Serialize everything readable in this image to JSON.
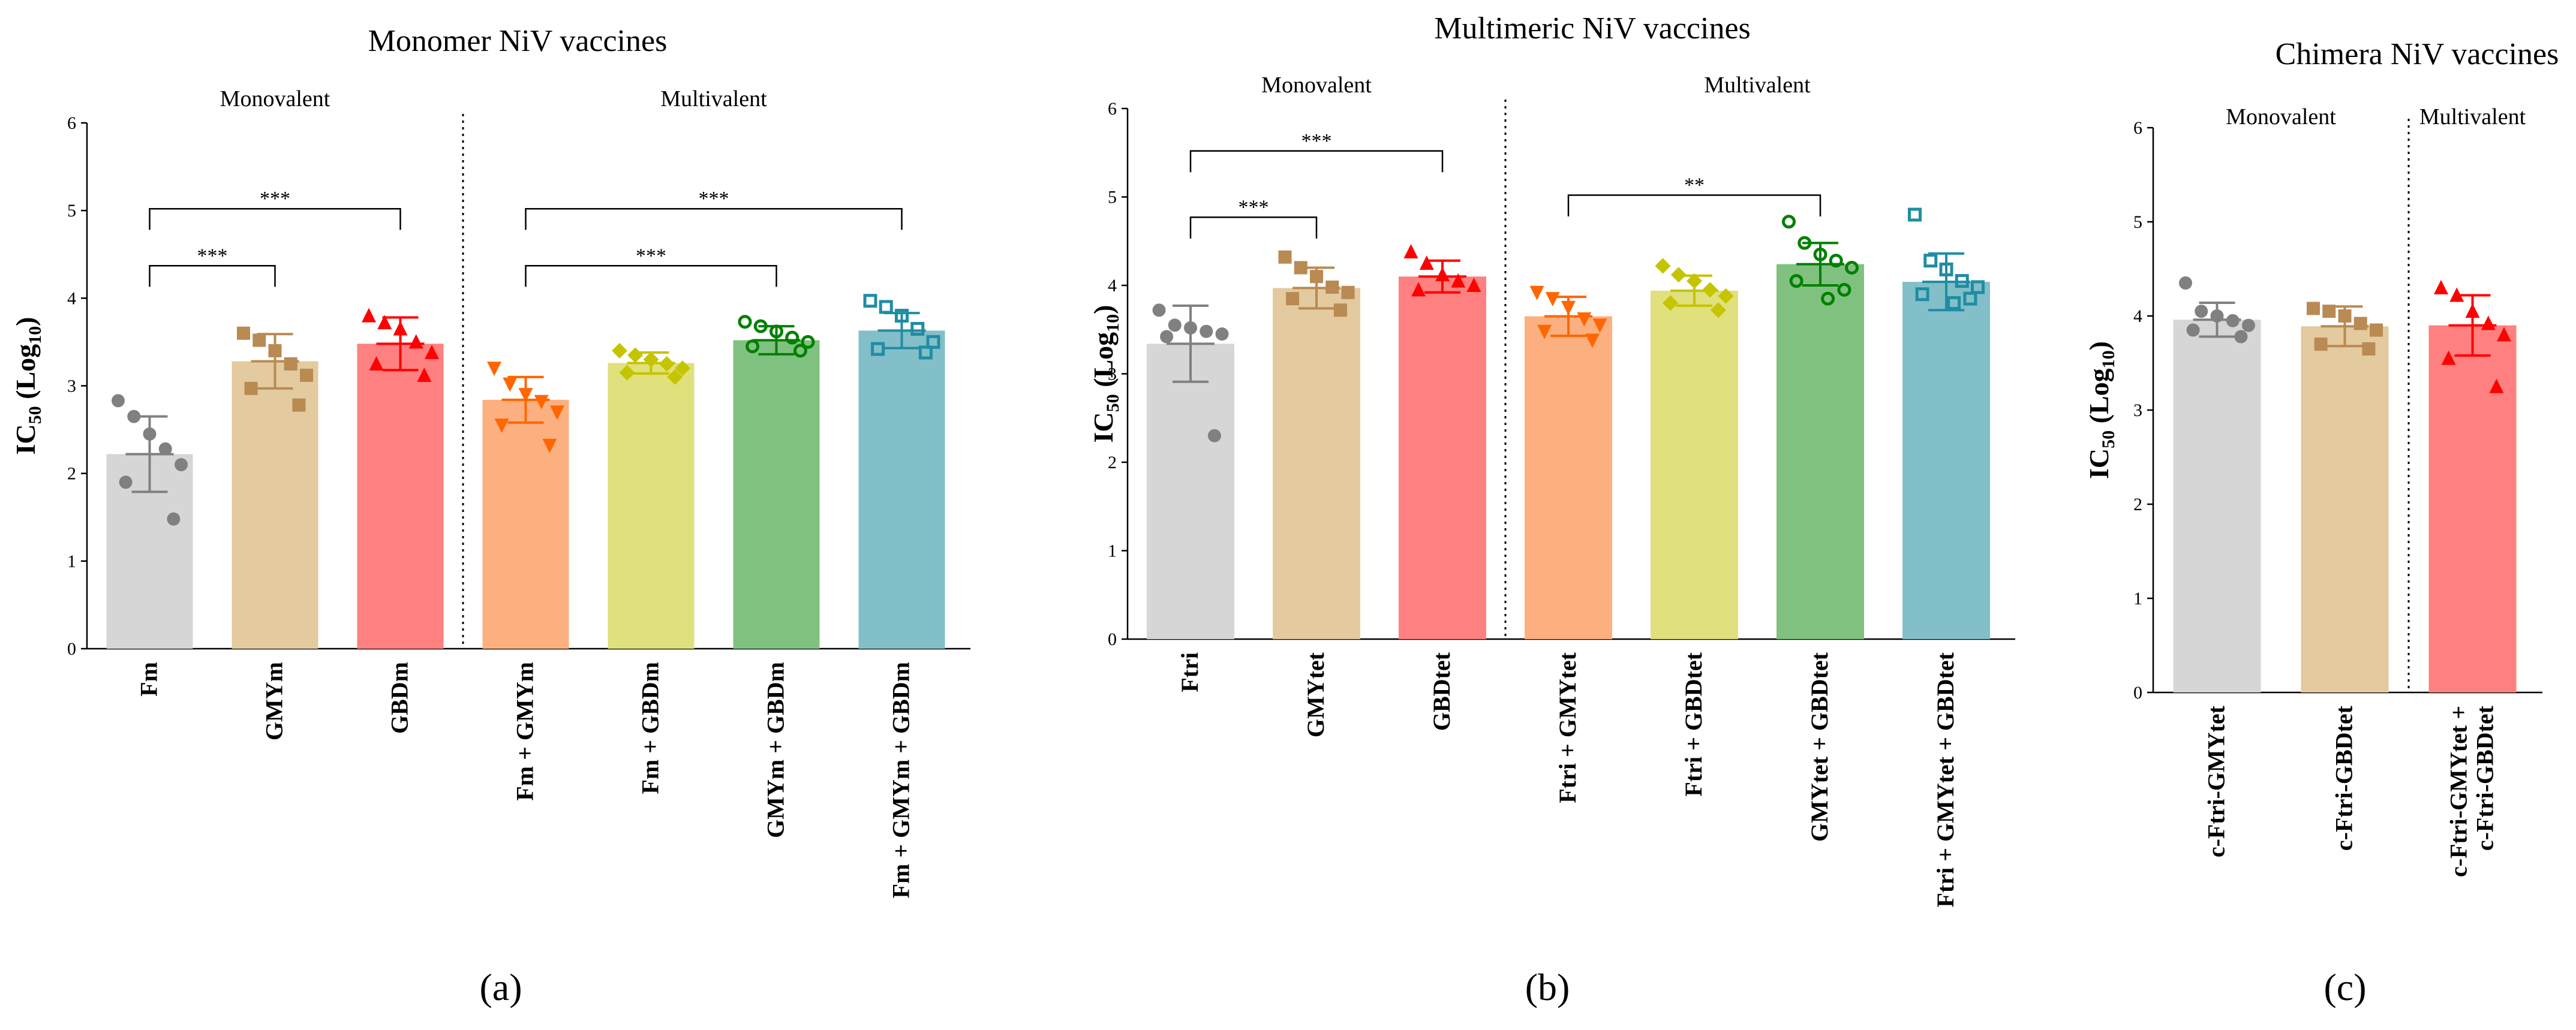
{
  "chart_data": [
    {
      "id": "a",
      "type": "bar",
      "title": "Monomer NiV vaccines",
      "ylabel_main": "IC",
      "ylabel_sub": "50",
      "ylabel_paren": "(Log",
      "ylabel_base": "10",
      "ylabel_close": ")",
      "ylim": [
        0,
        6
      ],
      "yticks": [
        "0",
        "1",
        "2",
        "3",
        "4",
        "5",
        "6"
      ],
      "groups": [
        {
          "label": "Monovalent",
          "start": 0,
          "end": 2
        },
        {
          "label": "Multivalent",
          "start": 3,
          "end": 6
        }
      ],
      "panel_label": "(a)",
      "categories": [
        "Fm",
        "GMYm",
        "GBDm",
        "Fm + GMYm",
        "Fm + GBDm",
        "GMYm + GBDm",
        "Fm + GMYm + GBDm"
      ],
      "values": [
        2.22,
        3.28,
        3.48,
        2.84,
        3.26,
        3.52,
        3.63
      ],
      "errors": [
        0.43,
        0.31,
        0.3,
        0.26,
        0.12,
        0.16,
        0.2
      ],
      "points": [
        [
          2.83,
          2.65,
          2.45,
          2.28,
          2.1,
          1.9,
          1.48
        ],
        [
          3.6,
          3.52,
          3.4,
          3.25,
          3.12,
          2.97,
          2.78
        ],
        [
          3.8,
          3.72,
          3.65,
          3.5,
          3.38,
          3.25,
          3.12
        ],
        [
          3.2,
          3.02,
          2.9,
          2.82,
          2.7,
          2.55,
          2.32
        ],
        [
          3.4,
          3.35,
          3.3,
          3.25,
          3.2,
          3.15,
          3.1
        ],
        [
          3.73,
          3.68,
          3.62,
          3.55,
          3.5,
          3.45,
          3.4
        ],
        [
          3.97,
          3.9,
          3.8,
          3.65,
          3.5,
          3.42,
          3.38
        ]
      ],
      "marker_shapes": [
        "circle",
        "square",
        "triangle",
        "triangle-down",
        "diamond",
        "ring",
        "open-square"
      ],
      "colors": [
        "#d6d6d6",
        "#e3ca9f",
        "#ff8080",
        "#fdb07f",
        "#e0e07c",
        "#80c180",
        "#83bfc9"
      ],
      "point_colors": [
        "#808080",
        "#b98a52",
        "#ff0000",
        "#ff6600",
        "#c4c400",
        "#008000",
        "#1f8da3"
      ],
      "comparisons": [
        {
          "from": 0,
          "to": 1,
          "y": 4.37,
          "label": "***"
        },
        {
          "from": 0,
          "to": 2,
          "y": 5.02,
          "label": "***"
        },
        {
          "from": 3,
          "to": 5,
          "y": 4.37,
          "label": "***"
        },
        {
          "from": 3,
          "to": 6,
          "y": 5.02,
          "label": "***"
        }
      ]
    },
    {
      "id": "b",
      "type": "bar",
      "title": "Multimeric NiV vaccines",
      "ylabel_main": "IC",
      "ylabel_sub": "50",
      "ylabel_paren": "(Log",
      "ylabel_base": "10",
      "ylabel_close": ")",
      "ylim": [
        0,
        6
      ],
      "yticks": [
        "0",
        "1",
        "2",
        "3",
        "4",
        "5",
        "6"
      ],
      "groups": [
        {
          "label": "Monovalent",
          "start": 0,
          "end": 2
        },
        {
          "label": "Multivalent",
          "start": 3,
          "end": 6
        }
      ],
      "panel_label": "(b)",
      "categories": [
        "Ftri",
        "GMYtet",
        "GBDtet",
        "Ftri + GMYtet",
        "Ftri + GBDtet",
        "GMYtet + GBDtet",
        "Ftri + GMYtet + GBDtet"
      ],
      "values": [
        3.34,
        3.97,
        4.1,
        3.65,
        3.94,
        4.24,
        4.04
      ],
      "errors": [
        0.43,
        0.23,
        0.18,
        0.22,
        0.17,
        0.24,
        0.32
      ],
      "points": [
        [
          3.72,
          3.55,
          3.52,
          3.48,
          3.45,
          3.42,
          2.3
        ],
        [
          4.32,
          4.2,
          4.1,
          3.98,
          3.92,
          3.85,
          3.72
        ],
        [
          4.38,
          4.25,
          4.12,
          4.05,
          4.0,
          3.95
        ],
        [
          3.92,
          3.85,
          3.75,
          3.62,
          3.55,
          3.48,
          3.38
        ],
        [
          4.22,
          4.12,
          4.05,
          3.95,
          3.88,
          3.8,
          3.72
        ],
        [
          4.72,
          4.48,
          4.35,
          4.28,
          4.2,
          4.05,
          3.95,
          3.85
        ],
        [
          4.8,
          4.28,
          4.18,
          4.05,
          3.98,
          3.9,
          3.85,
          3.8
        ]
      ],
      "marker_shapes": [
        "circle",
        "square",
        "triangle",
        "triangle-down",
        "diamond",
        "ring",
        "open-square"
      ],
      "colors": [
        "#d6d6d6",
        "#e3ca9f",
        "#ff8080",
        "#fdb07f",
        "#e0e07c",
        "#80c180",
        "#83bfc9"
      ],
      "point_colors": [
        "#808080",
        "#b98a52",
        "#ff0000",
        "#ff6600",
        "#c4c400",
        "#008000",
        "#1f8da3"
      ],
      "comparisons": [
        {
          "from": 0,
          "to": 1,
          "y": 4.77,
          "label": "***"
        },
        {
          "from": 0,
          "to": 2,
          "y": 5.52,
          "label": "***"
        },
        {
          "from": 3,
          "to": 5,
          "y": 5.02,
          "label": "**"
        }
      ]
    },
    {
      "id": "c",
      "type": "bar",
      "title": "Chimera NiV vaccines",
      "ylabel_main": "IC",
      "ylabel_sub": "50",
      "ylabel_paren": "(Log",
      "ylabel_base": "10",
      "ylabel_close": ")",
      "ylim": [
        0,
        6
      ],
      "yticks": [
        "0",
        "1",
        "2",
        "3",
        "4",
        "5",
        "6"
      ],
      "groups": [
        {
          "label": "Monovalent",
          "start": 0,
          "end": 1
        },
        {
          "label": "Multivalent",
          "start": 2,
          "end": 2
        }
      ],
      "panel_label": "(c)",
      "categories": [
        "c-Ftri-GMYtet",
        "c-Ftri-GBDtet",
        "c-Ftri-GMYtet +\nc-Ftri-GBDtet"
      ],
      "values": [
        3.96,
        3.89,
        3.9
      ],
      "errors": [
        0.18,
        0.21,
        0.32
      ],
      "points": [
        [
          4.35,
          4.05,
          4.0,
          3.95,
          3.9,
          3.85,
          3.78
        ],
        [
          4.08,
          4.05,
          4.0,
          3.92,
          3.85,
          3.7,
          3.65
        ],
        [
          4.3,
          4.22,
          4.05,
          3.92,
          3.8,
          3.55,
          3.25
        ]
      ],
      "marker_shapes": [
        "circle",
        "square",
        "triangle"
      ],
      "colors": [
        "#d6d6d6",
        "#e3ca9f",
        "#ff8080"
      ],
      "point_colors": [
        "#808080",
        "#b98a52",
        "#ff0000"
      ],
      "comparisons": []
    }
  ]
}
